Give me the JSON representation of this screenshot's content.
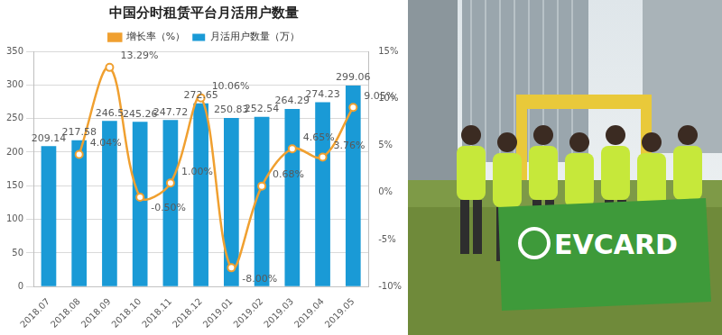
{
  "chart_data": {
    "type": "bar",
    "title": "中国分时租赁平台月活用户数量",
    "categories": [
      "2018.07",
      "2018.08",
      "2018.09",
      "2018.10",
      "2018.11",
      "2018.12",
      "2019.01",
      "2019.02",
      "2019.03",
      "2019.04",
      "2019.05"
    ],
    "series": [
      {
        "name": "月活用户数量（万）",
        "type": "bar",
        "color": "#1a9ad6",
        "values": [
          209.14,
          217.58,
          246.5,
          245.26,
          247.72,
          272.65,
          250.83,
          252.54,
          264.29,
          274.23,
          299.06
        ]
      },
      {
        "name": "增长率（%）",
        "type": "line",
        "color": "#f0a030",
        "axis": "y2",
        "marker": "circle",
        "line_style": "solid",
        "values": [
          null,
          4.04,
          13.29,
          -0.5,
          1.0,
          10.06,
          -8.0,
          0.68,
          4.65,
          3.76,
          9.05
        ],
        "value_labels": [
          null,
          "4.04%",
          "13.29%",
          "-0.50%",
          "1.00%",
          "10.06%",
          "-8.00%",
          "0.68%",
          "4.65%",
          "3.76%",
          "9.05%"
        ]
      }
    ],
    "ylim": [
      0,
      350
    ],
    "yticks": [
      0,
      50,
      100,
      150,
      200,
      250,
      300,
      350
    ],
    "y2lim": [
      -10,
      15
    ],
    "y2ticks": [
      {
        "value": -10,
        "label": "-10%"
      },
      {
        "value": -5,
        "label": "-5%"
      },
      {
        "value": 0,
        "label": "0%"
      },
      {
        "value": 5,
        "label": "5%"
      },
      {
        "value": 10,
        "label": "10%"
      },
      {
        "value": 15,
        "label": "15%"
      }
    ],
    "grid": true,
    "legend": "top",
    "data_labels": true
  },
  "photo": {
    "banner_text": "EVCARD"
  }
}
